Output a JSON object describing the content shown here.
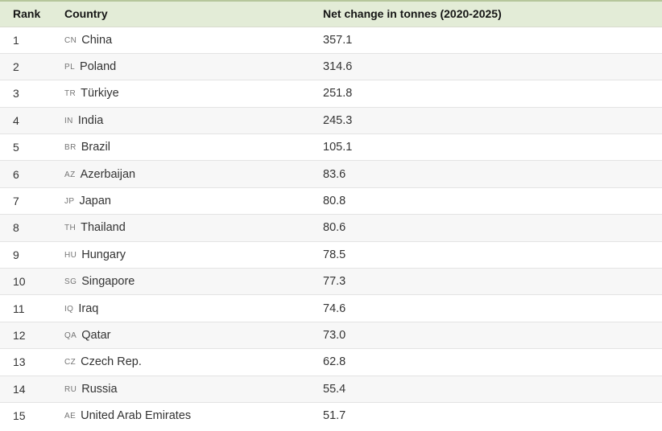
{
  "colors": {
    "header_bg": "#e3ecd7",
    "header_top_border": "#b6c69b",
    "header_bottom_border": "#d8dcce",
    "stripe_bg": "#f7f7f7",
    "row_border": "#e3e3e3",
    "text": "#333333",
    "code_text": "#757575"
  },
  "chart_data": {
    "type": "table",
    "title": "Net change in tonnes (2020-2025)",
    "columns": [
      "Rank",
      "Country",
      "Net change in tonnes (2020-2025)"
    ],
    "rows": [
      {
        "rank": 1,
        "code": "CN",
        "country": "China",
        "value": 357.1
      },
      {
        "rank": 2,
        "code": "PL",
        "country": "Poland",
        "value": 314.6
      },
      {
        "rank": 3,
        "code": "TR",
        "country": "Türkiye",
        "value": 251.8
      },
      {
        "rank": 4,
        "code": "IN",
        "country": "India",
        "value": 245.3
      },
      {
        "rank": 5,
        "code": "BR",
        "country": "Brazil",
        "value": 105.1
      },
      {
        "rank": 6,
        "code": "AZ",
        "country": "Azerbaijan",
        "value": 83.6
      },
      {
        "rank": 7,
        "code": "JP",
        "country": "Japan",
        "value": 80.8
      },
      {
        "rank": 8,
        "code": "TH",
        "country": "Thailand",
        "value": 80.6
      },
      {
        "rank": 9,
        "code": "HU",
        "country": "Hungary",
        "value": 78.5
      },
      {
        "rank": 10,
        "code": "SG",
        "country": "Singapore",
        "value": 77.3
      },
      {
        "rank": 11,
        "code": "IQ",
        "country": "Iraq",
        "value": 74.6
      },
      {
        "rank": 12,
        "code": "QA",
        "country": "Qatar",
        "value": 73.0
      },
      {
        "rank": 13,
        "code": "CZ",
        "country": "Czech Rep.",
        "value": 62.8
      },
      {
        "rank": 14,
        "code": "RU",
        "country": "Russia",
        "value": 55.4
      },
      {
        "rank": 15,
        "code": "AE",
        "country": "United Arab Emirates",
        "value": 51.7
      }
    ]
  }
}
